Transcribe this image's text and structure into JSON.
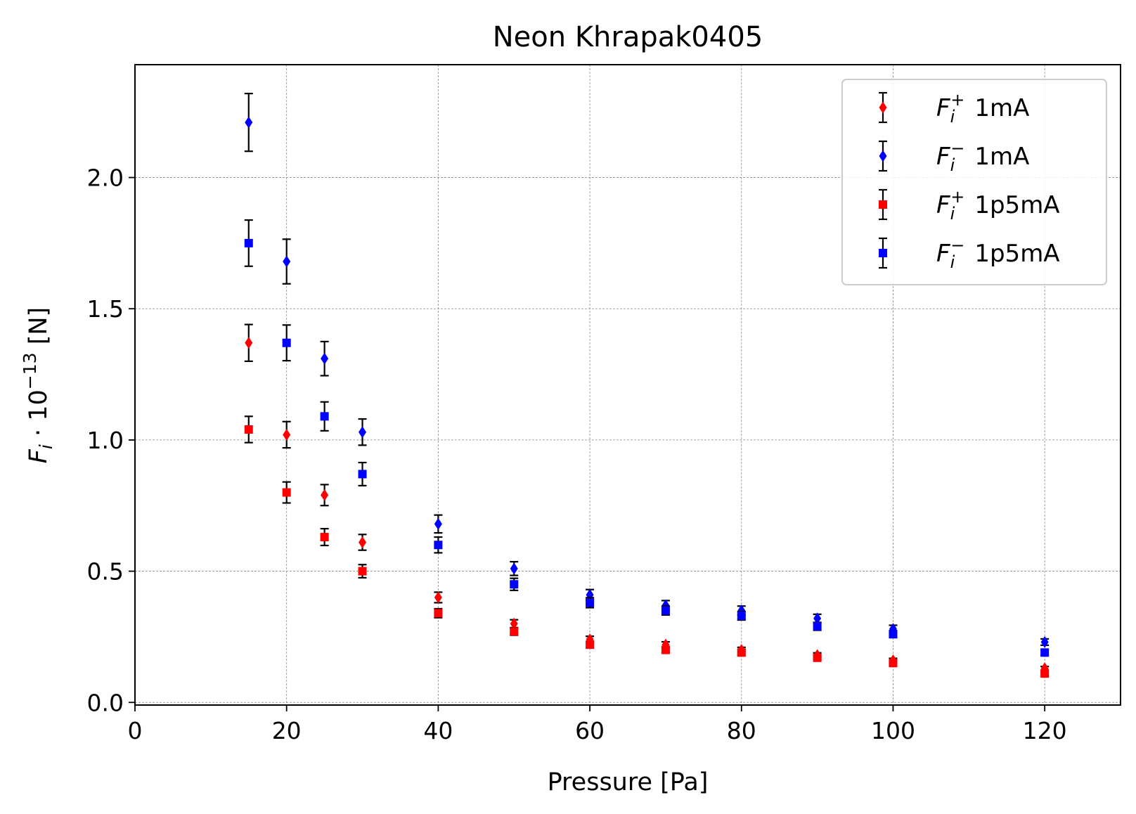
{
  "chart_data": {
    "type": "scatter",
    "title": "Neon Khrapak0405",
    "xlabel": "Pressure [Pa]",
    "ylabel": "F_i · 10^−13 [N]",
    "xlim": [
      0,
      130
    ],
    "ylim": [
      -0.01,
      2.43
    ],
    "xticks": [
      0,
      20,
      40,
      60,
      80,
      100,
      120
    ],
    "yticks": [
      0.0,
      0.5,
      1.0,
      1.5,
      2.0
    ],
    "grid": true,
    "legend_position": "upper right",
    "series": [
      {
        "name": "F_i^+ 1mA",
        "label_main": "F",
        "label_sub": "i",
        "label_sup": "+",
        "label_suffix": "1mA",
        "color": "#ff0000",
        "marker": "diamond",
        "x": [
          15,
          20,
          25,
          30,
          40,
          50,
          60,
          70,
          80,
          90,
          100,
          120
        ],
        "y": [
          1.37,
          1.02,
          0.79,
          0.61,
          0.4,
          0.3,
          0.24,
          0.22,
          0.2,
          0.18,
          0.16,
          0.13
        ],
        "err": [
          0.07,
          0.05,
          0.04,
          0.03,
          0.02,
          0.015,
          0.012,
          0.011,
          0.01,
          0.009,
          0.008,
          0.007
        ]
      },
      {
        "name": "F_i^− 1mA",
        "label_main": "F",
        "label_sub": "i",
        "label_sup": "−",
        "label_suffix": "1mA",
        "color": "#0000ff",
        "marker": "diamond",
        "x": [
          15,
          20,
          25,
          30,
          40,
          50,
          60,
          70,
          80,
          90,
          100,
          120
        ],
        "y": [
          2.21,
          1.68,
          1.31,
          1.03,
          0.68,
          0.51,
          0.41,
          0.37,
          0.35,
          0.32,
          0.28,
          0.23
        ],
        "err": [
          0.11,
          0.085,
          0.065,
          0.05,
          0.034,
          0.026,
          0.02,
          0.018,
          0.017,
          0.016,
          0.014,
          0.012
        ]
      },
      {
        "name": "F_i^+ 1p5mA",
        "label_main": "F",
        "label_sub": "i",
        "label_sup": "+",
        "label_suffix": "1p5mA",
        "color": "#ff0000",
        "marker": "square",
        "x": [
          15,
          20,
          25,
          30,
          40,
          50,
          60,
          70,
          80,
          90,
          100,
          120
        ],
        "y": [
          1.04,
          0.8,
          0.63,
          0.5,
          0.34,
          0.27,
          0.22,
          0.2,
          0.19,
          0.17,
          0.15,
          0.11
        ],
        "err": [
          0.05,
          0.04,
          0.032,
          0.025,
          0.017,
          0.014,
          0.011,
          0.01,
          0.01,
          0.009,
          0.008,
          0.006
        ]
      },
      {
        "name": "F_i^− 1p5mA",
        "label_main": "F",
        "label_sub": "i",
        "label_sup": "−",
        "label_suffix": "1p5mA",
        "color": "#0000ff",
        "marker": "square",
        "x": [
          15,
          20,
          25,
          30,
          40,
          50,
          60,
          70,
          80,
          90,
          100,
          120
        ],
        "y": [
          1.75,
          1.37,
          1.09,
          0.87,
          0.6,
          0.45,
          0.38,
          0.35,
          0.33,
          0.29,
          0.26,
          0.19
        ],
        "err": [
          0.088,
          0.068,
          0.055,
          0.044,
          0.03,
          0.023,
          0.019,
          0.017,
          0.016,
          0.015,
          0.013,
          0.01
        ]
      }
    ]
  }
}
